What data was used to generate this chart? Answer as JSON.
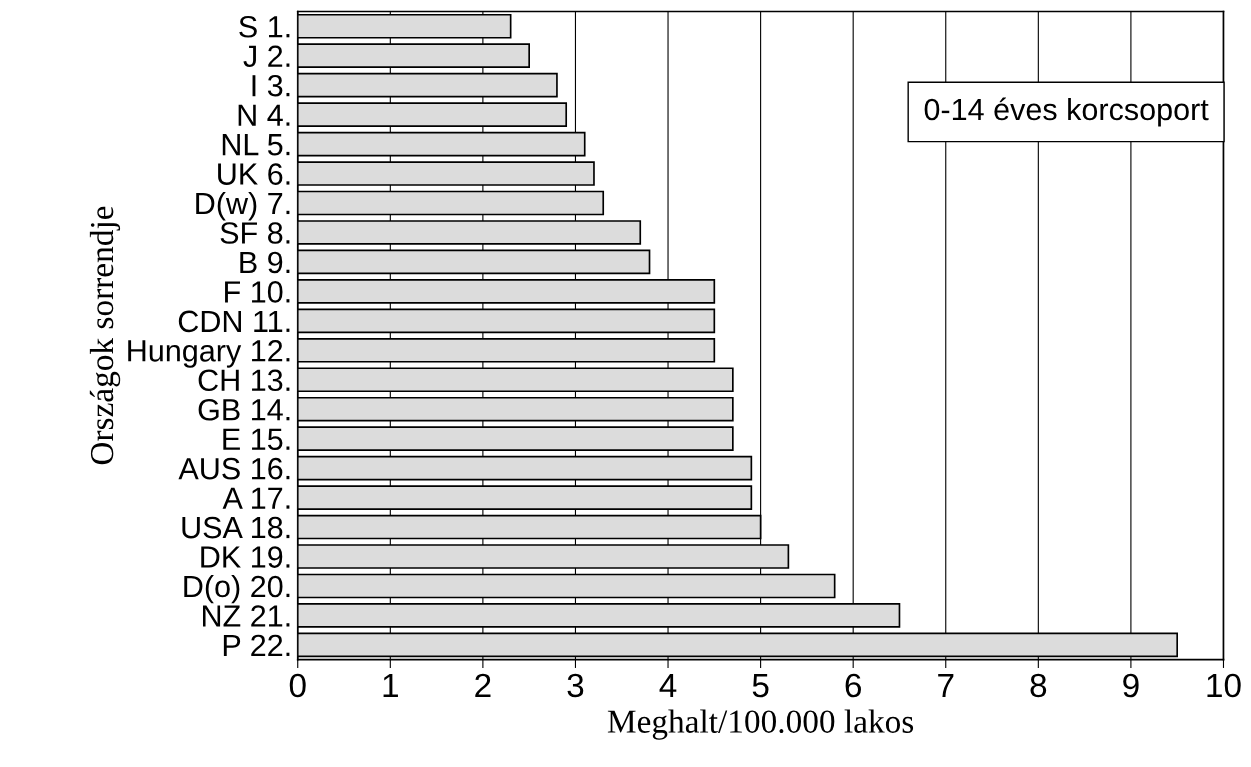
{
  "chart_data": {
    "type": "bar",
    "orientation": "horizontal",
    "categories": [
      "S 1.",
      "J 2.",
      "I 3.",
      "N 4.",
      "NL 5.",
      "UK 6.",
      "D(w) 7.",
      "SF 8.",
      "B 9.",
      "F 10.",
      "CDN 11.",
      "Hungary 12.",
      "CH 13.",
      "GB 14.",
      "E 15.",
      "AUS 16.",
      "A 17.",
      "USA 18.",
      "DK 19.",
      "D(o) 20.",
      "NZ 21.",
      "P 22."
    ],
    "values": [
      2.3,
      2.5,
      2.8,
      2.9,
      3.1,
      3.2,
      3.3,
      3.7,
      3.8,
      4.5,
      4.5,
      4.5,
      4.7,
      4.7,
      4.7,
      4.9,
      4.9,
      5.0,
      5.3,
      5.8,
      6.5,
      9.5
    ],
    "color": "#dcdcdc",
    "xlim": [
      0,
      10
    ],
    "xticks": [
      0,
      1,
      2,
      3,
      4,
      5,
      6,
      7,
      8,
      9,
      10
    ],
    "xlabel": "Meghalt/100.000 lakos",
    "ylabel": "Országok sorrendje",
    "annotations": [
      "0-14 éves korcsoport"
    ],
    "grid": "x"
  }
}
